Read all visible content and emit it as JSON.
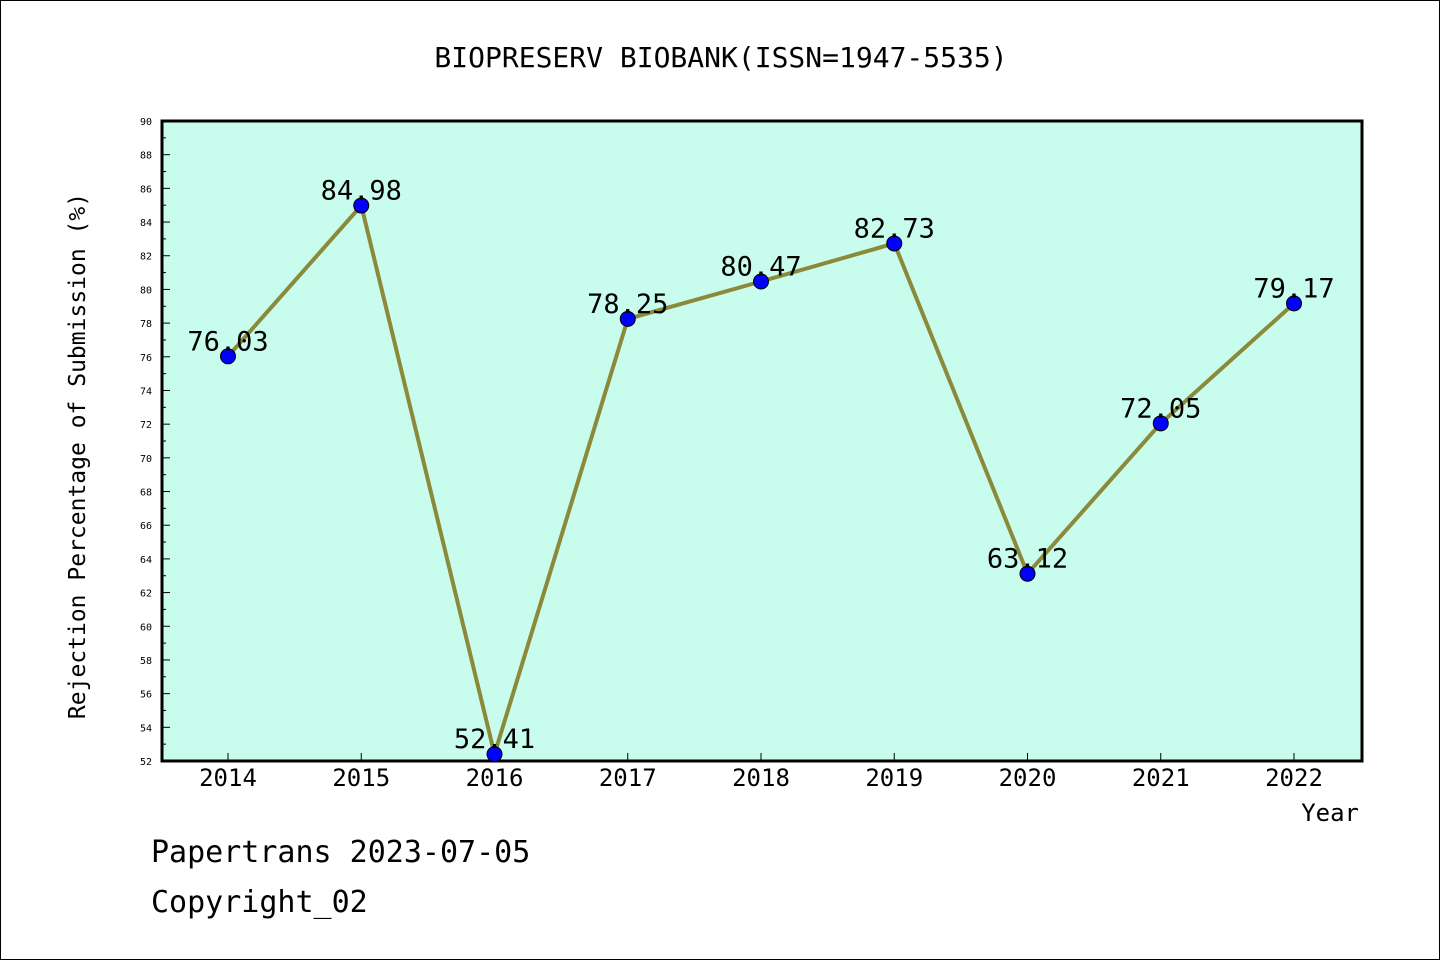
{
  "chart_data": {
    "type": "line",
    "title": "BIOPRESERV BIOBANK(ISSN=1947-5535)",
    "xlabel": "Year",
    "ylabel": "Rejection Percentage of Submission (%)",
    "categories": [
      "2014",
      "2015",
      "2016",
      "2017",
      "2018",
      "2019",
      "2020",
      "2021",
      "2022"
    ],
    "values": [
      76.03,
      84.98,
      52.41,
      78.25,
      80.47,
      82.73,
      63.12,
      72.05,
      79.17
    ],
    "value_labels": [
      "76.03",
      "84.98",
      "52.41",
      "78.25",
      "80.47",
      "82.73",
      "63.12",
      "72.05",
      "79.17"
    ],
    "ylim": [
      52,
      90
    ],
    "y_ticks": [
      "52",
      "54",
      "56",
      "58",
      "60",
      "62",
      "64",
      "66",
      "68",
      "70",
      "72",
      "74",
      "76",
      "78",
      "80",
      "82",
      "84",
      "86",
      "88",
      "90"
    ],
    "grid": false,
    "legend": "none",
    "colors": {
      "plot_background": "#c8fdee",
      "line": "#8b8a3a",
      "marker": "#0000ff"
    }
  },
  "footer": {
    "line1": "Papertrans 2023-07-05",
    "line2": "Copyright_02"
  }
}
